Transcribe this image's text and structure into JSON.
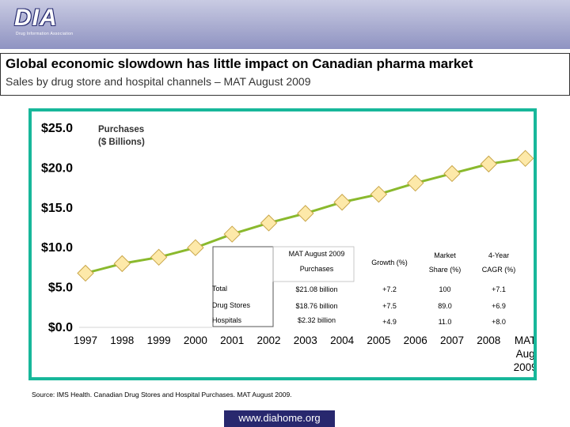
{
  "brand": {
    "logo_text": "DIA",
    "logo_sub": "Drug Information Association"
  },
  "title": "Global economic slowdown has little impact on Canadian pharma market",
  "subtitle": "Sales by drug store and hospital channels – MAT August 2009",
  "chart_data": {
    "type": "line",
    "ylabel": "Purchases ($ Billions)",
    "ylabel_lines": [
      "Purchases",
      "($ Billions)"
    ],
    "categories": [
      "1997",
      "1998",
      "1999",
      "2000",
      "2001",
      "2002",
      "2003",
      "2004",
      "2005",
      "2006",
      "2007",
      "2008",
      "MAT Aug 2009"
    ],
    "category_labels": [
      [
        "1997"
      ],
      [
        "1998"
      ],
      [
        "1999"
      ],
      [
        "2000"
      ],
      [
        "2001"
      ],
      [
        "2002"
      ],
      [
        "2003"
      ],
      [
        "2004"
      ],
      [
        "2005"
      ],
      [
        "2006"
      ],
      [
        "2007"
      ],
      [
        "2008"
      ],
      [
        "MAT",
        "Aug",
        "2009"
      ]
    ],
    "values": [
      6.7,
      7.9,
      8.7,
      9.9,
      11.6,
      13.0,
      14.2,
      15.6,
      16.6,
      18.0,
      19.2,
      20.4,
      21.1
    ],
    "ylim": [
      0,
      25
    ],
    "yticks": [
      0,
      5,
      10,
      15,
      20,
      25
    ],
    "ytick_labels": [
      "$0.0",
      "$5.0",
      "$10.0",
      "$15.0",
      "$20.0",
      "$25.0"
    ],
    "line_color": "#8ab92d",
    "marker_color": "#fde9a9",
    "marker_border": "#c9a649"
  },
  "table": {
    "header": {
      "col1_line1": "MAT August 2009",
      "col1_line2": "Purchases",
      "col2": "Growth (%)",
      "col3_line1": "Market",
      "col3_line2": "Share (%)",
      "col4_line1": "4-Year",
      "col4_line2": "CAGR (%)"
    },
    "rows": [
      {
        "label": "Total",
        "purchases": "$21.08 billion",
        "growth": "+7.2",
        "share": "100",
        "cagr": "+7.1"
      },
      {
        "label": "Drug Stores",
        "purchases": "$18.76 billion",
        "growth": "+7.5",
        "share": "89.0",
        "cagr": "+6.9"
      },
      {
        "label": "Hospitals",
        "purchases": "$2.32 billion",
        "growth": "+4.9",
        "share": "11.0",
        "cagr": "+8.0"
      }
    ]
  },
  "source": "Source: IMS Health. Canadian Drug Stores and Hospital Purchases. MAT August 2009.",
  "footer_url": "www.diahome.org"
}
